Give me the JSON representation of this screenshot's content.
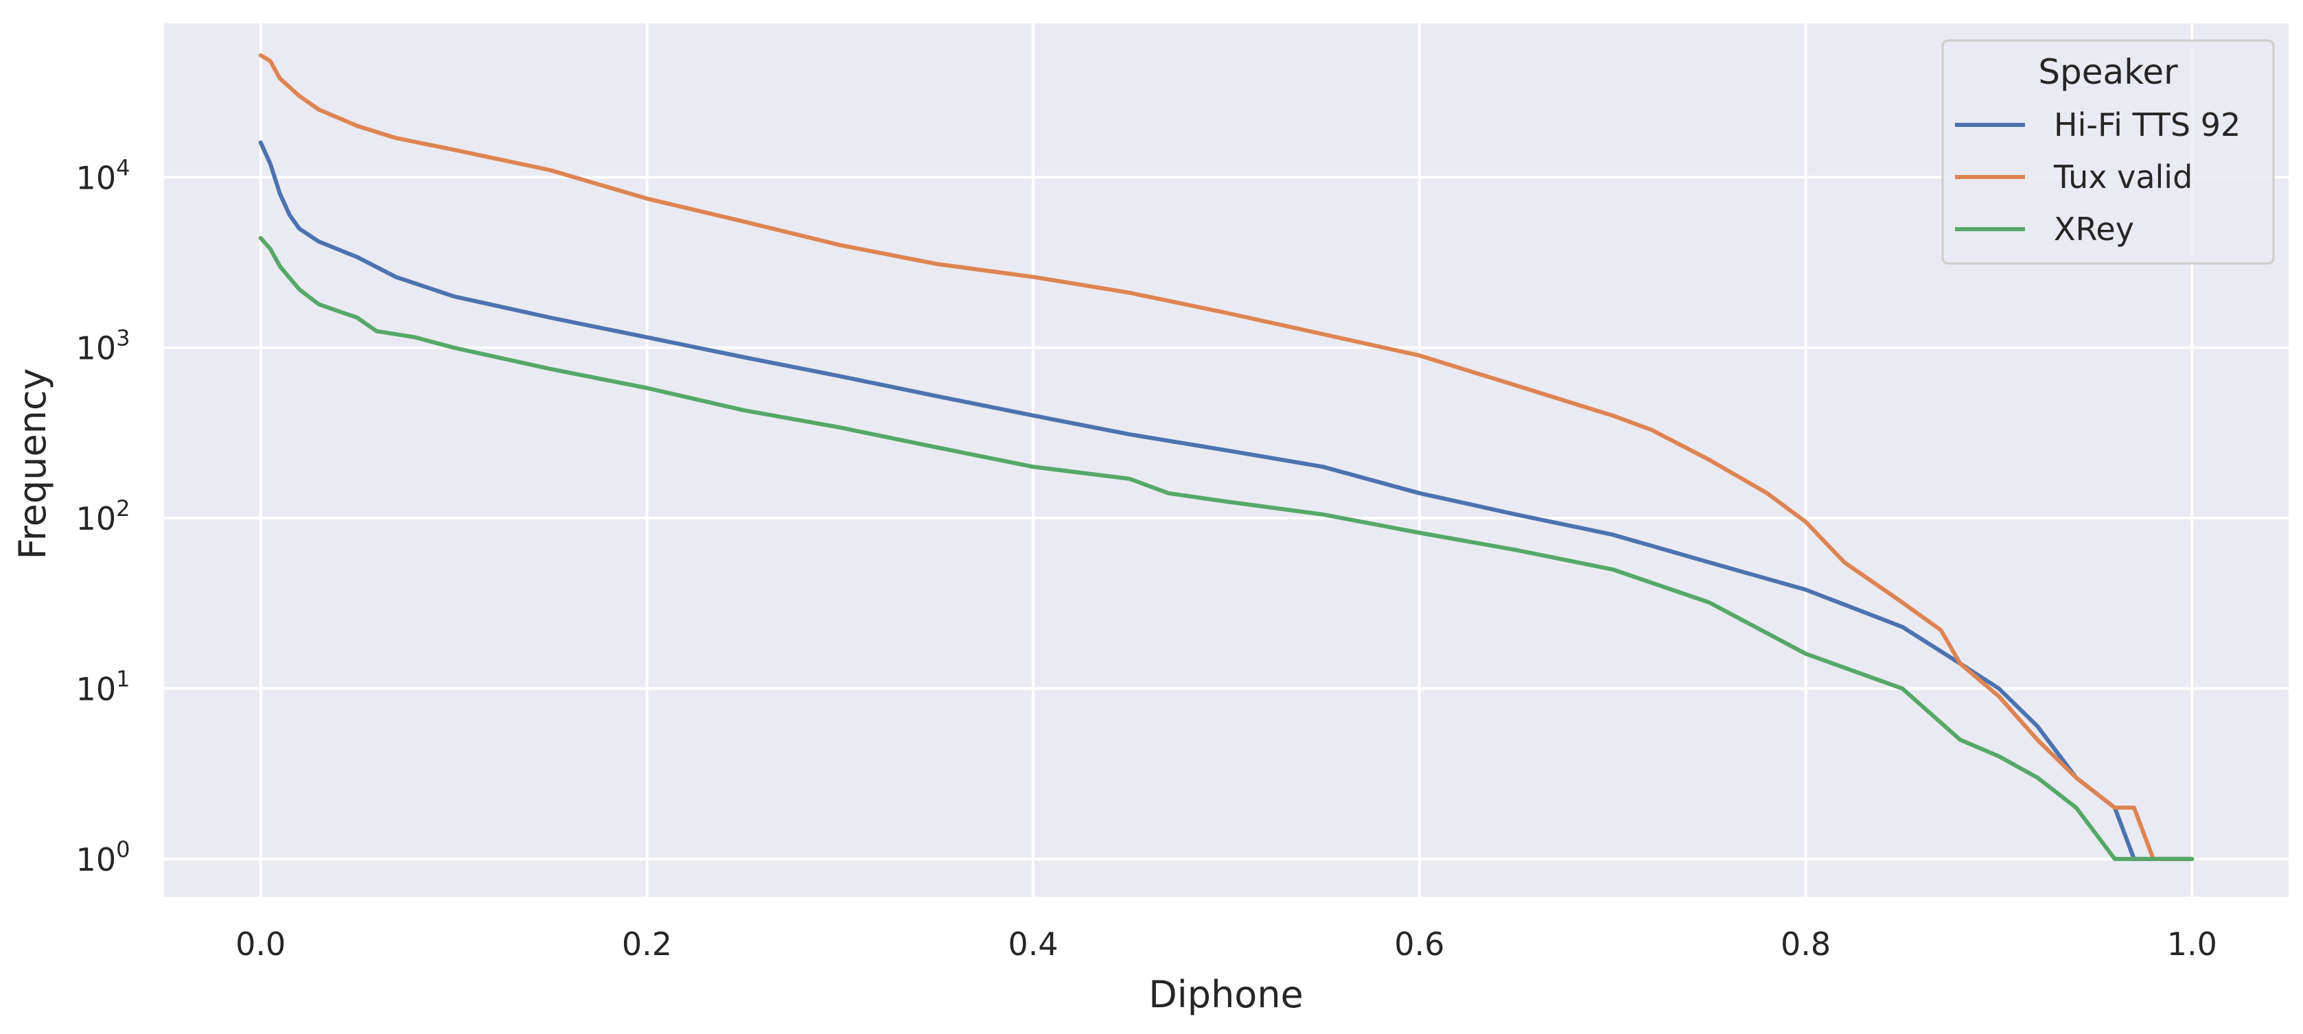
{
  "chart_data": {
    "type": "line",
    "title": "",
    "xlabel": "Diphone",
    "ylabel": "Frequency",
    "xlim": [
      -0.05,
      1.05
    ],
    "ylim": [
      0.6,
      80000
    ],
    "yscale": "log",
    "grid": true,
    "x_ticks": [
      0.0,
      0.2,
      0.4,
      0.6,
      0.8,
      1.0
    ],
    "x_tick_labels": [
      "0.0",
      "0.2",
      "0.4",
      "0.6",
      "0.8",
      "1.0"
    ],
    "y_ticks": [
      1,
      10,
      100,
      1000,
      10000
    ],
    "y_tick_labels": [
      {
        "base": "10",
        "exp": "0"
      },
      {
        "base": "10",
        "exp": "1"
      },
      {
        "base": "10",
        "exp": "2"
      },
      {
        "base": "10",
        "exp": "3"
      },
      {
        "base": "10",
        "exp": "4"
      }
    ],
    "legend": {
      "title": "Speaker",
      "position": "top-right"
    },
    "series": [
      {
        "name": "Hi-Fi TTS 92",
        "color": "#4c72b0",
        "x": [
          0.0,
          0.005,
          0.01,
          0.015,
          0.02,
          0.03,
          0.05,
          0.07,
          0.1,
          0.15,
          0.2,
          0.25,
          0.3,
          0.35,
          0.4,
          0.45,
          0.5,
          0.55,
          0.6,
          0.65,
          0.7,
          0.75,
          0.8,
          0.85,
          0.88,
          0.9,
          0.92,
          0.94,
          0.96,
          0.97,
          1.0
        ],
        "y": [
          16000,
          12000,
          8000,
          6000,
          5000,
          4200,
          3400,
          2600,
          2000,
          1500,
          1150,
          880,
          680,
          520,
          400,
          310,
          250,
          200,
          140,
          105,
          80,
          55,
          38,
          23,
          14,
          10,
          6,
          3,
          2,
          1,
          1
        ]
      },
      {
        "name": "Tux valid",
        "color": "#dd8452",
        "x": [
          0.0,
          0.005,
          0.01,
          0.02,
          0.03,
          0.05,
          0.07,
          0.1,
          0.15,
          0.2,
          0.25,
          0.3,
          0.35,
          0.4,
          0.45,
          0.5,
          0.55,
          0.6,
          0.65,
          0.7,
          0.72,
          0.75,
          0.78,
          0.8,
          0.82,
          0.85,
          0.87,
          0.88,
          0.9,
          0.92,
          0.94,
          0.96,
          0.97,
          0.98,
          1.0
        ],
        "y": [
          52000,
          48000,
          38000,
          30000,
          25000,
          20000,
          17000,
          14500,
          11000,
          7500,
          5500,
          4000,
          3100,
          2600,
          2100,
          1600,
          1200,
          900,
          600,
          400,
          330,
          220,
          140,
          95,
          55,
          32,
          22,
          14,
          9,
          5,
          3,
          2,
          2,
          1,
          1
        ]
      },
      {
        "name": "XRey",
        "color": "#55a868",
        "x": [
          0.0,
          0.005,
          0.01,
          0.02,
          0.03,
          0.05,
          0.06,
          0.08,
          0.1,
          0.15,
          0.2,
          0.25,
          0.3,
          0.35,
          0.4,
          0.45,
          0.47,
          0.5,
          0.55,
          0.6,
          0.65,
          0.7,
          0.75,
          0.8,
          0.85,
          0.88,
          0.9,
          0.92,
          0.94,
          0.96,
          1.0
        ],
        "y": [
          4400,
          3800,
          3000,
          2200,
          1800,
          1500,
          1250,
          1150,
          1000,
          750,
          580,
          430,
          340,
          260,
          200,
          170,
          140,
          125,
          105,
          82,
          65,
          50,
          32,
          16,
          10,
          5,
          4,
          3,
          2,
          1,
          1
        ]
      }
    ]
  }
}
